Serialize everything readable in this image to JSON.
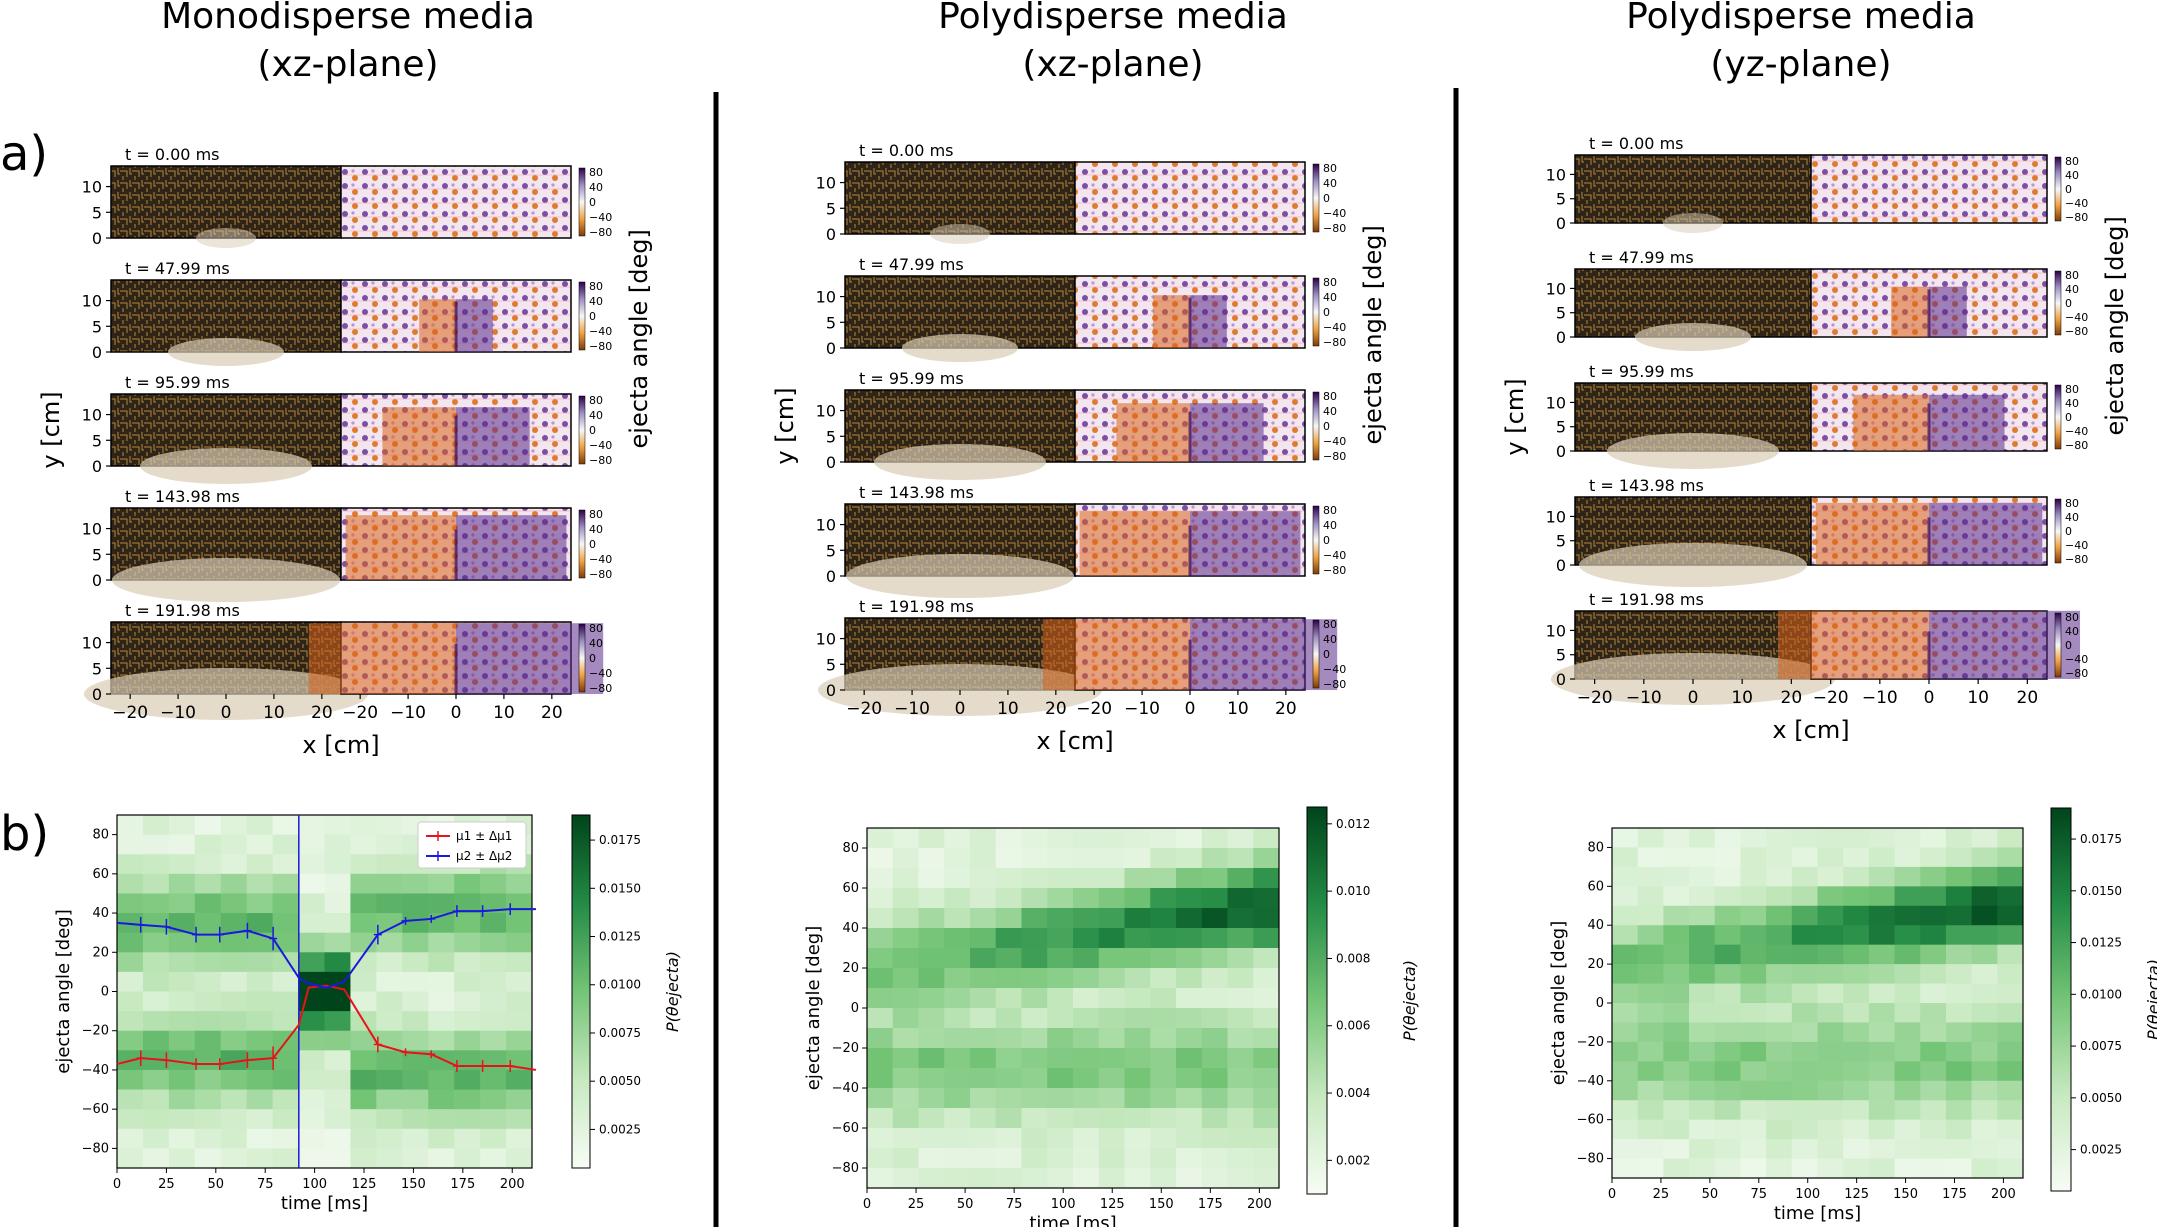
{
  "columns": [
    {
      "title_line1": "Monodisperse media",
      "title_line2": "(xz-plane)"
    },
    {
      "title_line1": "Polydisperse media",
      "title_line2": "(xz-plane)"
    },
    {
      "title_line1": "Polydisperse media",
      "title_line2": "(yz-plane)"
    }
  ],
  "panel_labels": {
    "a": "a)",
    "b": "b)"
  },
  "snapshot_times": [
    "t = 0.00 ms",
    "t = 47.99 ms",
    "t = 95.99 ms",
    "t = 143.98 ms",
    "t = 191.98 ms"
  ],
  "snapshot_axes": {
    "xlabel": "x [cm]",
    "ylabel": "y [cm]",
    "colorbar_label": "ejecta angle [deg]",
    "x_ticks_left": [
      "-20",
      "-10",
      "0",
      "10",
      "20"
    ],
    "x_ticks_right": [
      "-20",
      "-10",
      "0",
      "10",
      "20"
    ],
    "y_ticks": [
      "0",
      "5",
      "10"
    ],
    "colorbar_ticks": [
      "80",
      "40",
      "0",
      "-40",
      "-80"
    ]
  },
  "colors": {
    "dark_background": "#2e2418",
    "orange": "#d9641c",
    "purple": "#5a2a8a",
    "red_series": "#e8121a",
    "blue_series": "#1a1adc",
    "green_max": "#00441b",
    "green_min": "#f7fcf5"
  },
  "chart_data": [
    {
      "type": "heatmap",
      "panel": "monodisperse-xz",
      "xlabel": "time [ms]",
      "ylabel": "ejecta angle [deg]",
      "xlim": [
        0,
        210
      ],
      "ylim": [
        -90,
        90
      ],
      "x_ticks": [
        0,
        25,
        50,
        75,
        100,
        125,
        150,
        175,
        200
      ],
      "y_ticks": [
        -80,
        -60,
        -40,
        -20,
        0,
        20,
        40,
        60,
        80
      ],
      "colorbar_label": "P(θejecta)",
      "colorbar_range": [
        0.0005,
        0.0188
      ],
      "colorbar_ticks": [
        "0.0025",
        "0.0050",
        "0.0075",
        "0.0100",
        "0.0125",
        "0.0150",
        "0.0175"
      ],
      "vertical_marker_x": 92,
      "legend": {
        "position": "upper right",
        "entries": [
          "μ1 ± Δμ1",
          "μ2 ± Δμ2"
        ]
      },
      "series": [
        {
          "name": "μ1 ± Δμ1",
          "color": "red",
          "x": [
            0,
            12,
            25,
            40,
            52,
            66,
            79,
            92,
            97,
            106,
            115,
            132,
            146,
            159,
            172,
            185,
            199,
            212
          ],
          "y": [
            -37,
            -34,
            -35,
            -37,
            -37,
            -35,
            -34,
            -17,
            2,
            3,
            1,
            -27,
            -31,
            -32,
            -38,
            -38,
            -38,
            -40
          ],
          "err": [
            0,
            4,
            4,
            3,
            3,
            4,
            6,
            0,
            0,
            0,
            0,
            4,
            2,
            2,
            3,
            3,
            3,
            0
          ]
        },
        {
          "name": "μ2 ± Δμ2",
          "color": "blue",
          "x": [
            0,
            12,
            25,
            40,
            52,
            66,
            79,
            92,
            97,
            106,
            115,
            132,
            146,
            159,
            172,
            185,
            199,
            212
          ],
          "y": [
            35,
            34,
            33,
            29,
            29,
            31,
            27,
            7,
            4,
            2,
            5,
            29,
            36,
            37,
            41,
            41,
            42,
            42
          ],
          "err": [
            0,
            4,
            4,
            4,
            4,
            4,
            6,
            0,
            0,
            0,
            0,
            5,
            2,
            2,
            3,
            3,
            3,
            0
          ]
        }
      ]
    },
    {
      "type": "heatmap",
      "panel": "polydisperse-xz",
      "xlabel": "time [ms]",
      "ylabel": "ejecta angle [deg]",
      "xlim": [
        0,
        210
      ],
      "ylim": [
        -90,
        90
      ],
      "x_ticks": [
        0,
        25,
        50,
        75,
        100,
        125,
        150,
        175,
        200
      ],
      "y_ticks": [
        -80,
        -60,
        -40,
        -20,
        0,
        20,
        40,
        60,
        80
      ],
      "colorbar_label": "P(θejecta)",
      "colorbar_range": [
        0.001,
        0.0125
      ],
      "colorbar_ticks": [
        "0.002",
        "0.004",
        "0.006",
        "0.008",
        "0.010",
        "0.012"
      ]
    },
    {
      "type": "heatmap",
      "panel": "polydisperse-yz",
      "xlabel": "time [ms]",
      "ylabel": "ejecta angle [deg]",
      "xlim": [
        0,
        210
      ],
      "ylim": [
        -90,
        90
      ],
      "x_ticks": [
        0,
        25,
        50,
        75,
        100,
        125,
        150,
        175,
        200
      ],
      "y_ticks": [
        -80,
        -60,
        -40,
        -20,
        0,
        20,
        40,
        60,
        80
      ],
      "colorbar_label": "P(θejecta)",
      "colorbar_range": [
        0.0005,
        0.019
      ],
      "colorbar_ticks": [
        "0.0025",
        "0.0050",
        "0.0075",
        "0.0100",
        "0.0125",
        "0.0150",
        "0.0175"
      ]
    }
  ]
}
